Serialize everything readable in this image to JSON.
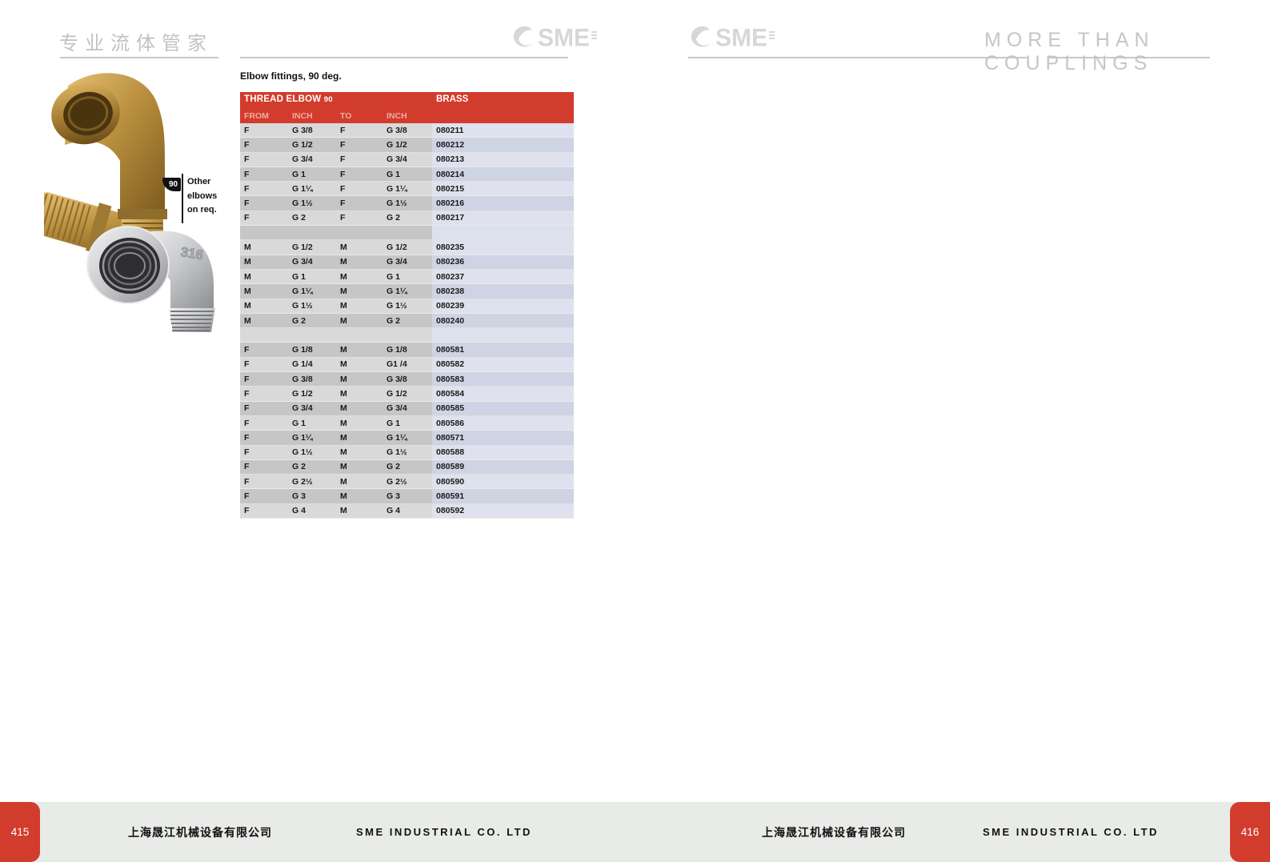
{
  "brand": {
    "name": "SME",
    "tagline": "MORE THAN COUPLINGS",
    "title_cn": "专业流体管家"
  },
  "colors": {
    "accent_red": "#d23c2d",
    "row_gray_light": "#d9d9d9",
    "row_gray_dark": "#c6c6c7",
    "row_lav_light": "#dfe2ee",
    "row_lav_dark": "#cfd4e4",
    "sep_lav": "#dde1ed",
    "footer_bg": "#e9ebe8"
  },
  "product": {
    "section_title": "Elbow fittings, 90 deg.",
    "angle_badge": "90",
    "note": [
      "Other",
      "elbows",
      "on req."
    ],
    "stamp": "316"
  },
  "table": {
    "title_main": "THREAD ELBOW",
    "title_deg": "90",
    "material": "BRASS",
    "columns": [
      "FROM",
      "INCH",
      "TO",
      "INCH"
    ],
    "rows": [
      {
        "from": "F",
        "inch": "G 3/8",
        "to": "F",
        "inch2": "G 3/8",
        "code": "080211"
      },
      {
        "from": "F",
        "inch": "G 1/2",
        "to": "F",
        "inch2": "G 1/2",
        "code": "080212"
      },
      {
        "from": "F",
        "inch": "G 3/4",
        "to": "F",
        "inch2": "G 3/4",
        "code": "080213"
      },
      {
        "from": "F",
        "inch": "G 1",
        "to": "F",
        "inch2": "G 1",
        "code": "080214"
      },
      {
        "from": "F",
        "inch": "G 1¼",
        "to": "F",
        "inch2": "G 1¼",
        "code": "080215"
      },
      {
        "from": "F",
        "inch": "G 1½",
        "to": "F",
        "inch2": "G 1½",
        "code": "080216"
      },
      {
        "from": "F",
        "inch": "G 2",
        "to": "F",
        "inch2": "G 2",
        "code": "080217"
      },
      {
        "sep": true
      },
      {
        "from": "M",
        "inch": "G 1/2",
        "to": "M",
        "inch2": "G 1/2",
        "code": "080235"
      },
      {
        "from": "M",
        "inch": "G 3/4",
        "to": "M",
        "inch2": "G 3/4",
        "code": "080236"
      },
      {
        "from": "M",
        "inch": "G 1",
        "to": "M",
        "inch2": "G 1",
        "code": "080237"
      },
      {
        "from": "M",
        "inch": "G 1¼",
        "to": "M",
        "inch2": "G 1¼",
        "code": "080238"
      },
      {
        "from": "M",
        "inch": "G 1½",
        "to": "M",
        "inch2": "G 1½",
        "code": "080239"
      },
      {
        "from": "M",
        "inch": "G 2",
        "to": "M",
        "inch2": "G 2",
        "code": "080240"
      },
      {
        "sep": true
      },
      {
        "from": "F",
        "inch": "G 1/8",
        "to": "M",
        "inch2": "G 1/8",
        "code": "080581"
      },
      {
        "from": "F",
        "inch": "G 1/4",
        "to": "M",
        "inch2": "G1 /4",
        "code": "080582"
      },
      {
        "from": "F",
        "inch": "G 3/8",
        "to": "M",
        "inch2": "G 3/8",
        "code": "080583"
      },
      {
        "from": "F",
        "inch": "G 1/2",
        "to": "M",
        "inch2": "G 1/2",
        "code": "080584"
      },
      {
        "from": "F",
        "inch": "G 3/4",
        "to": "M",
        "inch2": "G 3/4",
        "code": "080585"
      },
      {
        "from": "F",
        "inch": "G 1",
        "to": "M",
        "inch2": "G 1",
        "code": "080586"
      },
      {
        "from": "F",
        "inch": "G 1¼",
        "to": "M",
        "inch2": "G 1¼",
        "code": "080571"
      },
      {
        "from": "F",
        "inch": "G 1½",
        "to": "M",
        "inch2": "G 1½",
        "code": "080588"
      },
      {
        "from": "F",
        "inch": "G 2",
        "to": "M",
        "inch2": "G 2",
        "code": "080589"
      },
      {
        "from": "F",
        "inch": "G 2½",
        "to": "M",
        "inch2": "G 2½",
        "code": "080590"
      },
      {
        "from": "F",
        "inch": "G 3",
        "to": "M",
        "inch2": "G 3",
        "code": "080591"
      },
      {
        "from": "F",
        "inch": "G 4",
        "to": "M",
        "inch2": "G 4",
        "code": "080592"
      }
    ]
  },
  "footer": {
    "company_cn": "上海晟江机械设备有限公司",
    "company_en": "SME INDUSTRIAL CO. LTD",
    "page_left": "415",
    "page_right": "416"
  }
}
